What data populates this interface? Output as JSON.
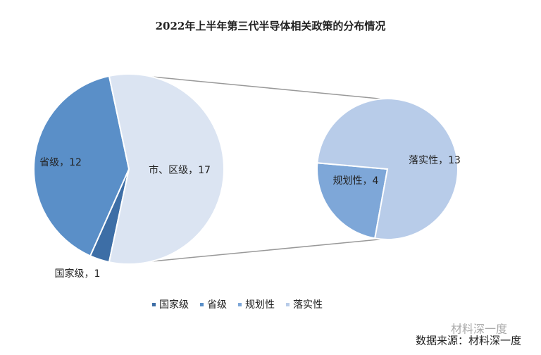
{
  "chart_data": {
    "type": "pie-of-pie",
    "title": "2022年上半年第三代半导体相关政策的分布情况",
    "pie": {
      "categories": [
        "国家级",
        "省级",
        "市、区级"
      ],
      "values": [
        1,
        12,
        17
      ],
      "value_labels": [
        "国家级，1",
        "省级，12",
        "市、区级，17"
      ],
      "colors": [
        "#3d6ea6",
        "#5a8fc8",
        "#dbe4f2"
      ]
    },
    "expanded_category": 2,
    "sub_pie": {
      "categories": [
        "规划性",
        "落实性"
      ],
      "values": [
        4,
        13
      ],
      "value_labels": [
        "规划性，4",
        "落实性，13"
      ],
      "colors": [
        "#7ea7d8",
        "#b8cce9"
      ]
    },
    "legend": true,
    "source": "数据来源：材料深一度",
    "watermark": "材料深一度"
  }
}
